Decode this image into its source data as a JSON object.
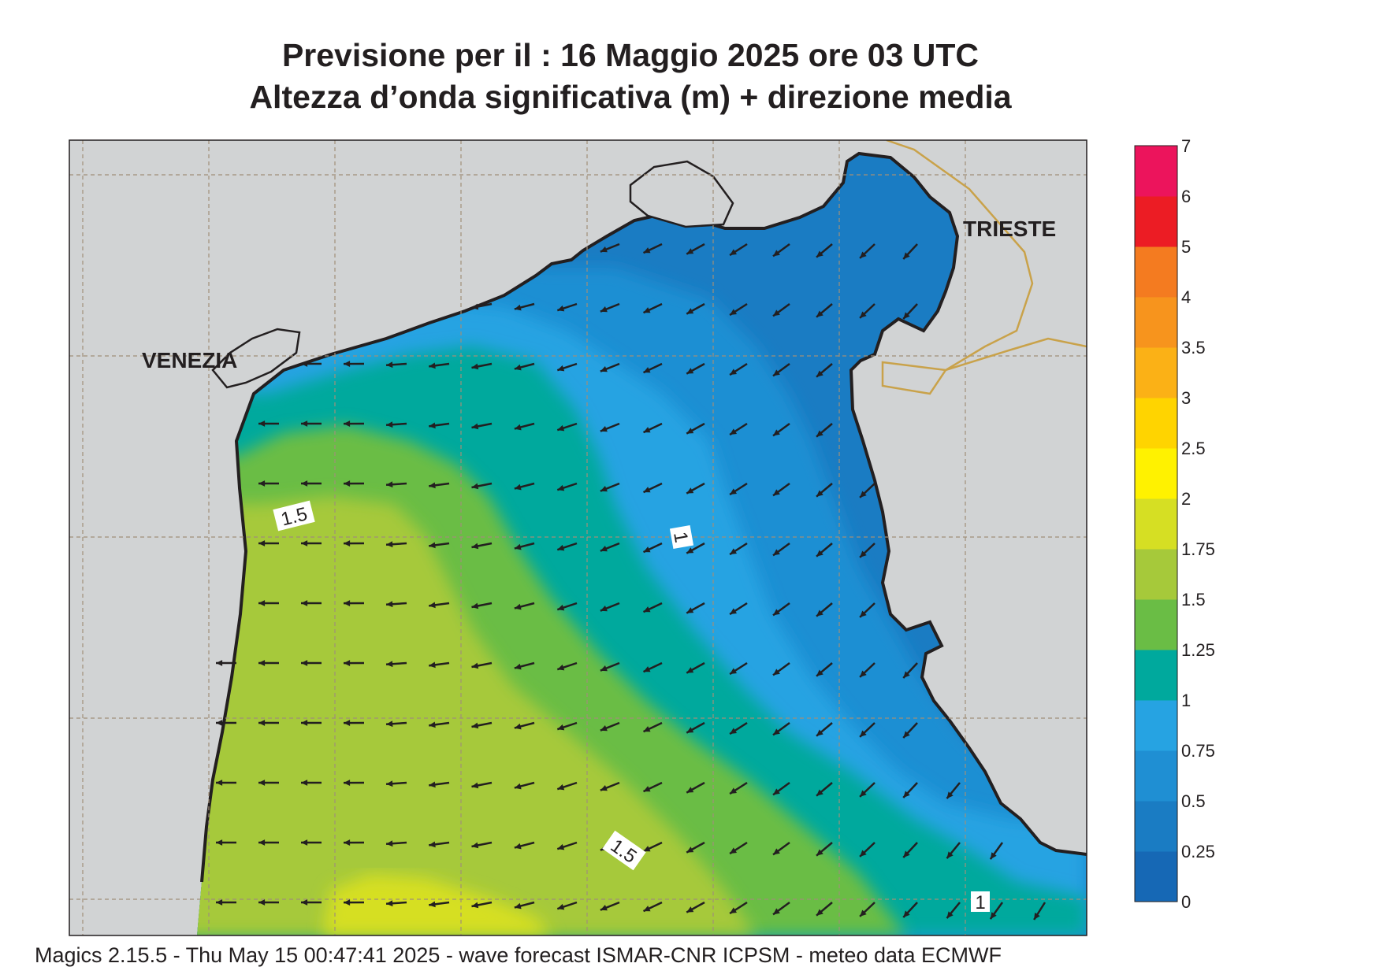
{
  "title": {
    "line1": "Previsione per il  :  16   Maggio  2025   ore 03 UTC",
    "line2": "Altezza d’onda significativa (m) + direzione media"
  },
  "map": {
    "places": [
      {
        "name": "VENEZIA"
      },
      {
        "name": "TRIESTE"
      }
    ],
    "contour_labels": [
      "1.5",
      "1",
      "1.5",
      "1"
    ],
    "land_color": "#d1d3d4",
    "coast_color": "#231f20",
    "border_color": "#c9a24a",
    "arrow_direction": "towards west / south-west"
  },
  "legend": {
    "levels": [
      "0",
      "0.25",
      "0.5",
      "0.75",
      "1",
      "1.25",
      "1.5",
      "1.75",
      "2",
      "2.5",
      "3",
      "3.5",
      "4",
      "5",
      "6",
      "7"
    ],
    "colors": [
      "#1668b5",
      "#1a7cc3",
      "#1f8fd3",
      "#26a3e2",
      "#00a99d",
      "#6abd45",
      "#a6c93a",
      "#d6df23",
      "#fff200",
      "#ffd400",
      "#fbb116",
      "#f7941d",
      "#f47b20",
      "#ec1c24",
      "#ec145c"
    ]
  },
  "footer": "Magics 2.15.5 - Thu May 15 00:47:41 2025 - wave forecast  ISMAR-CNR  ICPSM - meteo data   ECMWF"
}
